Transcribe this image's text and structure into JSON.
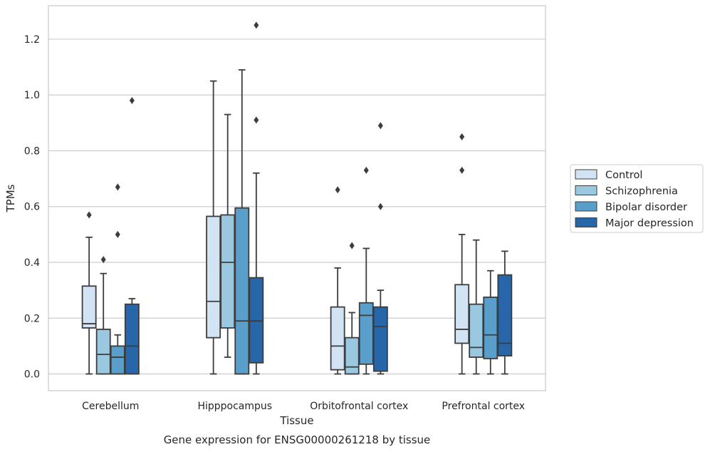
{
  "chart_data": {
    "type": "box",
    "xlabel": "Tissue",
    "ylabel": "TPMs",
    "caption": "Gene expression for ENSG00000261218 by tissue",
    "ylim": [
      -0.06,
      1.32
    ],
    "yticks": [
      0.0,
      0.2,
      0.4,
      0.6,
      0.8,
      1.0,
      1.2
    ],
    "ytick_labels": [
      "0.0",
      "0.2",
      "0.4",
      "0.6",
      "0.8",
      "1.0",
      "1.2"
    ],
    "grid": "horizontal",
    "legend_position": "right",
    "categories": [
      "Cerebellum",
      "Hipppocampus",
      "Orbitofrontal cortex",
      "Prefrontal cortex"
    ],
    "series": [
      {
        "name": "Control",
        "color": "#d2e3f3",
        "boxes": [
          {
            "whislo": 0.0,
            "q1": 0.165,
            "med": 0.18,
            "q3": 0.315,
            "whishi": 0.49,
            "fliers": [
              0.57
            ]
          },
          {
            "whislo": 0.0,
            "q1": 0.13,
            "med": 0.26,
            "q3": 0.565,
            "whishi": 1.05,
            "fliers": []
          },
          {
            "whislo": 0.0,
            "q1": 0.015,
            "med": 0.1,
            "q3": 0.24,
            "whishi": 0.38,
            "fliers": [
              0.66
            ]
          },
          {
            "whislo": 0.0,
            "q1": 0.11,
            "med": 0.16,
            "q3": 0.32,
            "whishi": 0.5,
            "fliers": [
              0.73,
              0.85
            ]
          }
        ]
      },
      {
        "name": "Schizophrenia",
        "color": "#9ac8e0",
        "boxes": [
          {
            "whislo": 0.0,
            "q1": 0.0,
            "med": 0.07,
            "q3": 0.16,
            "whishi": 0.36,
            "fliers": [
              0.41
            ]
          },
          {
            "whislo": 0.06,
            "q1": 0.165,
            "med": 0.4,
            "q3": 0.57,
            "whishi": 0.93,
            "fliers": []
          },
          {
            "whislo": 0.0,
            "q1": 0.0,
            "med": 0.025,
            "q3": 0.13,
            "whishi": 0.22,
            "fliers": [
              0.46
            ]
          },
          {
            "whislo": 0.0,
            "q1": 0.06,
            "med": 0.095,
            "q3": 0.25,
            "whishi": 0.48,
            "fliers": []
          }
        ]
      },
      {
        "name": "Bipolar disorder",
        "color": "#5a9fcc",
        "boxes": [
          {
            "whislo": 0.0,
            "q1": 0.0,
            "med": 0.06,
            "q3": 0.1,
            "whishi": 0.14,
            "fliers": [
              0.5,
              0.67
            ]
          },
          {
            "whislo": 0.0,
            "q1": 0.0,
            "med": 0.19,
            "q3": 0.595,
            "whishi": 1.09,
            "fliers": []
          },
          {
            "whislo": 0.0,
            "q1": 0.035,
            "med": 0.21,
            "q3": 0.255,
            "whishi": 0.45,
            "fliers": [
              0.73
            ]
          },
          {
            "whislo": 0.0,
            "q1": 0.055,
            "med": 0.14,
            "q3": 0.275,
            "whishi": 0.37,
            "fliers": []
          }
        ]
      },
      {
        "name": "Major depression",
        "color": "#2666a9",
        "boxes": [
          {
            "whislo": 0.0,
            "q1": 0.0,
            "med": 0.1,
            "q3": 0.25,
            "whishi": 0.27,
            "fliers": [
              0.98
            ]
          },
          {
            "whislo": 0.0,
            "q1": 0.04,
            "med": 0.19,
            "q3": 0.345,
            "whishi": 0.72,
            "fliers": [
              0.91,
              1.25
            ]
          },
          {
            "whislo": 0.0,
            "q1": 0.01,
            "med": 0.17,
            "q3": 0.24,
            "whishi": 0.3,
            "fliers": [
              0.6,
              0.89
            ]
          },
          {
            "whislo": 0.0,
            "q1": 0.065,
            "med": 0.11,
            "q3": 0.355,
            "whishi": 0.44,
            "fliers": []
          }
        ]
      }
    ]
  }
}
